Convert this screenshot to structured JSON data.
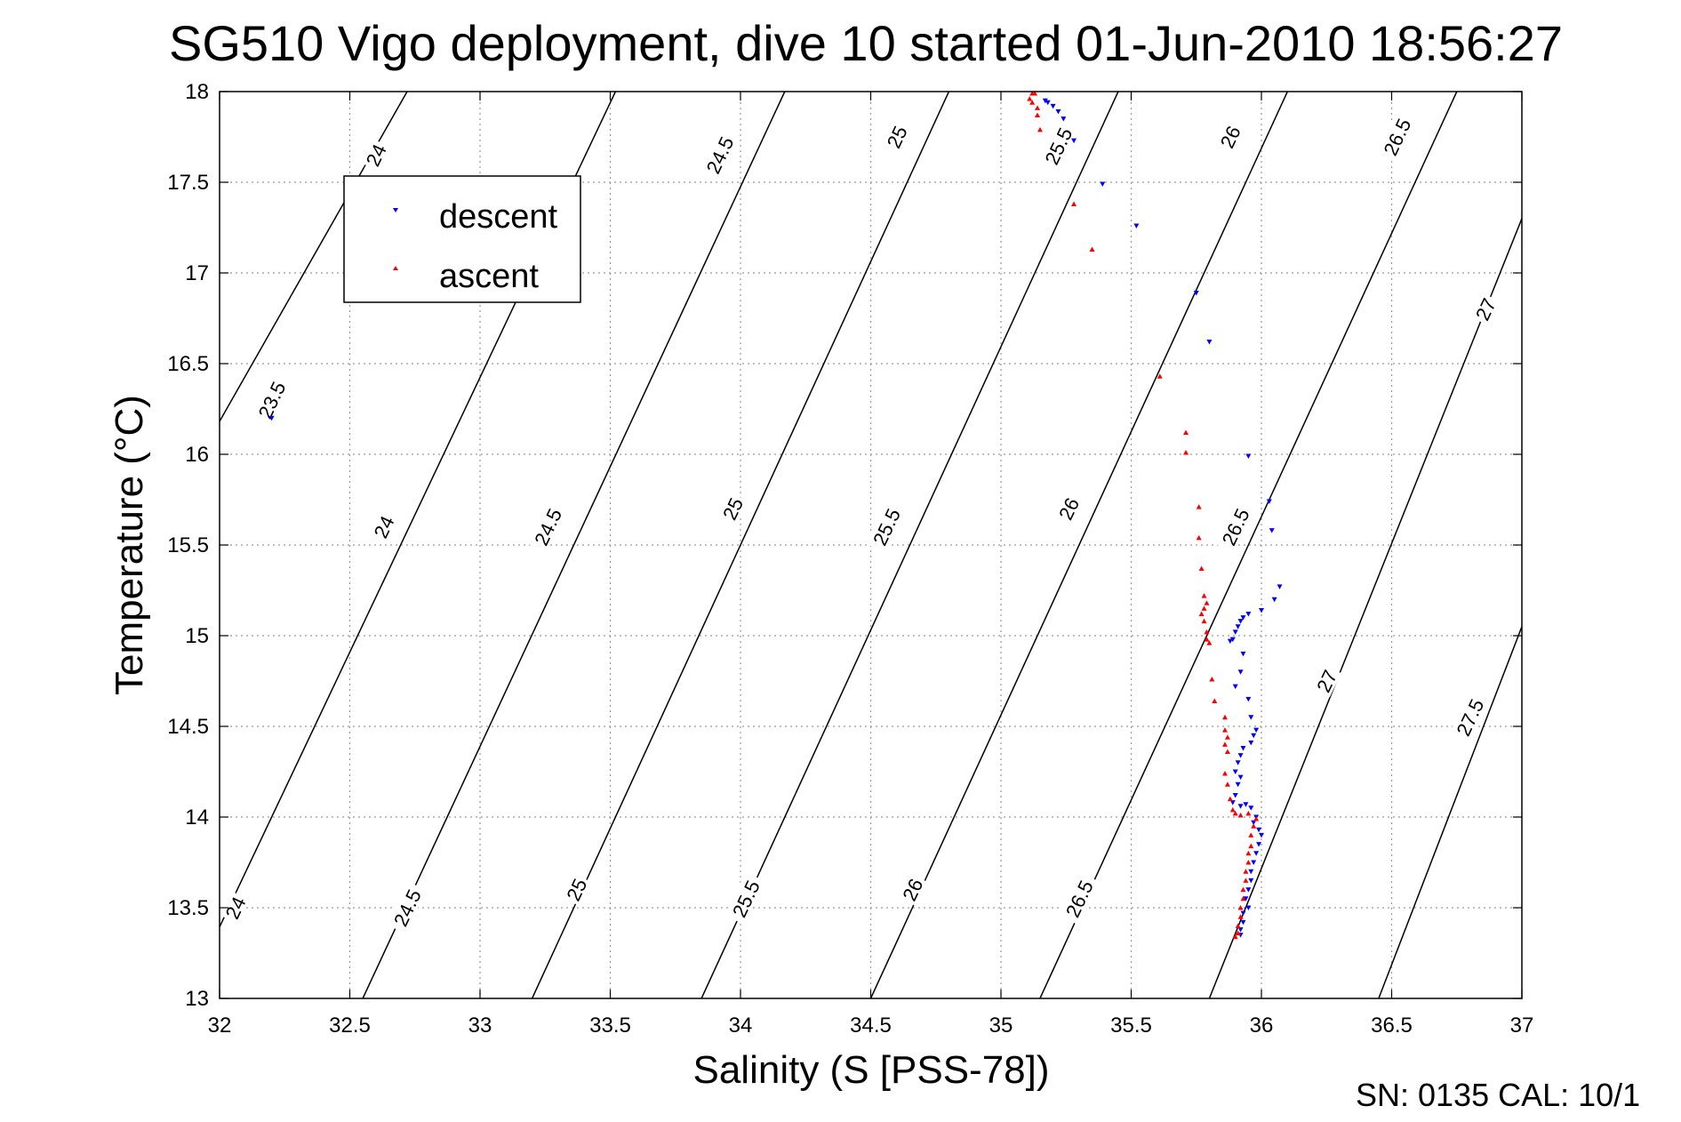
{
  "chart_data": {
    "type": "scatter",
    "title": "SG510 Vigo deployment, dive 10 started 01-Jun-2010 18:56:27",
    "xlabel": "Salinity (S [PSS-78])",
    "ylabel": "Temperature (°C)",
    "xlim": [
      32,
      37
    ],
    "ylim": [
      13,
      18
    ],
    "x_ticks": [
      "32",
      "32.5",
      "33",
      "33.5",
      "34",
      "34.5",
      "35",
      "35.5",
      "36",
      "36.5",
      "37"
    ],
    "y_ticks": [
      "13",
      "13.5",
      "14",
      "14.5",
      "15",
      "15.5",
      "16",
      "16.5",
      "17",
      "17.5",
      "18"
    ],
    "grid": true,
    "legend_position": "upper-left",
    "footer_text": "SN: 0135  CAL: 10/1",
    "density_contours": [
      {
        "label": "23.5",
        "points": [
          [
            31.92,
            15.98
          ],
          [
            32.72,
            18.0
          ]
        ]
      },
      {
        "label": "24",
        "points": [
          [
            31.87,
            13.0
          ],
          [
            33.52,
            18.0
          ]
        ]
      },
      {
        "label": "24.5",
        "points": [
          [
            32.55,
            13.0
          ],
          [
            34.17,
            18.0
          ]
        ]
      },
      {
        "label": "25",
        "points": [
          [
            33.2,
            13.0
          ],
          [
            34.8,
            18.0
          ]
        ]
      },
      {
        "label": "25.5",
        "points": [
          [
            33.85,
            13.0
          ],
          [
            35.45,
            18.0
          ]
        ]
      },
      {
        "label": "26",
        "points": [
          [
            34.5,
            13.0
          ],
          [
            36.1,
            18.0
          ]
        ]
      },
      {
        "label": "26.5",
        "points": [
          [
            35.15,
            13.0
          ],
          [
            36.75,
            18.0
          ]
        ]
      },
      {
        "label": "27",
        "points": [
          [
            35.8,
            13.0
          ],
          [
            37.0,
            17.3
          ]
        ]
      },
      {
        "label": "27.5",
        "points": [
          [
            36.45,
            13.0
          ],
          [
            37.0,
            15.05
          ]
        ]
      }
    ],
    "contour_labels": [
      {
        "text": "23.5",
        "x": 32.2,
        "y": 16.3
      },
      {
        "text": "24",
        "x": 32.6,
        "y": 17.65
      },
      {
        "text": "24",
        "x": 32.63,
        "y": 15.6
      },
      {
        "text": "24",
        "x": 32.06,
        "y": 13.5
      },
      {
        "text": "24.5",
        "x": 33.92,
        "y": 17.65
      },
      {
        "text": "24.5",
        "x": 33.26,
        "y": 15.6
      },
      {
        "text": "24.5",
        "x": 32.72,
        "y": 13.5
      },
      {
        "text": "25",
        "x": 34.6,
        "y": 17.75
      },
      {
        "text": "25",
        "x": 33.97,
        "y": 15.7
      },
      {
        "text": "25",
        "x": 33.37,
        "y": 13.6
      },
      {
        "text": "25.5",
        "x": 35.22,
        "y": 17.7
      },
      {
        "text": "25.5",
        "x": 34.56,
        "y": 15.6
      },
      {
        "text": "25.5",
        "x": 34.02,
        "y": 13.55
      },
      {
        "text": "26",
        "x": 35.88,
        "y": 17.75
      },
      {
        "text": "26",
        "x": 35.26,
        "y": 15.7
      },
      {
        "text": "26",
        "x": 34.66,
        "y": 13.6
      },
      {
        "text": "26.5",
        "x": 36.52,
        "y": 17.75
      },
      {
        "text": "26.5",
        "x": 35.9,
        "y": 15.6
      },
      {
        "text": "26.5",
        "x": 35.3,
        "y": 13.55
      },
      {
        "text": "27",
        "x": 36.86,
        "y": 16.8
      },
      {
        "text": "27",
        "x": 36.25,
        "y": 14.75
      },
      {
        "text": "27.5",
        "x": 36.8,
        "y": 14.55
      }
    ],
    "series": [
      {
        "name": "descent",
        "color": "#0000ff",
        "marker": "triangle-down",
        "points": [
          [
            35.17,
            17.95
          ],
          [
            35.18,
            17.94
          ],
          [
            35.2,
            17.92
          ],
          [
            35.22,
            17.89
          ],
          [
            35.24,
            17.85
          ],
          [
            35.28,
            17.73
          ],
          [
            35.39,
            17.49
          ],
          [
            35.52,
            17.26
          ],
          [
            35.75,
            16.89
          ],
          [
            35.8,
            16.62
          ],
          [
            32.2,
            16.2
          ],
          [
            35.95,
            15.99
          ],
          [
            36.03,
            15.74
          ],
          [
            36.04,
            15.58
          ],
          [
            36.07,
            15.27
          ],
          [
            36.05,
            15.2
          ],
          [
            36.0,
            15.14
          ],
          [
            35.95,
            15.12
          ],
          [
            35.93,
            15.1
          ],
          [
            35.92,
            15.08
          ],
          [
            35.91,
            15.05
          ],
          [
            35.9,
            15.02
          ],
          [
            35.89,
            14.98
          ],
          [
            35.88,
            14.97
          ],
          [
            35.93,
            14.9
          ],
          [
            35.92,
            14.8
          ],
          [
            35.9,
            14.72
          ],
          [
            35.95,
            14.65
          ],
          [
            35.96,
            14.55
          ],
          [
            35.98,
            14.48
          ],
          [
            35.97,
            14.45
          ],
          [
            35.96,
            14.41
          ],
          [
            35.93,
            14.38
          ],
          [
            35.92,
            14.34
          ],
          [
            35.91,
            14.3
          ],
          [
            35.9,
            14.25
          ],
          [
            35.92,
            14.22
          ],
          [
            35.91,
            14.18
          ],
          [
            35.9,
            14.12
          ],
          [
            35.89,
            14.08
          ],
          [
            35.92,
            14.06
          ],
          [
            35.94,
            14.07
          ],
          [
            35.96,
            14.05
          ],
          [
            35.98,
            14.0
          ],
          [
            35.97,
            13.97
          ],
          [
            35.99,
            13.93
          ],
          [
            36.0,
            13.9
          ],
          [
            35.99,
            13.85
          ],
          [
            35.98,
            13.8
          ],
          [
            35.97,
            13.75
          ],
          [
            35.96,
            13.7
          ],
          [
            35.96,
            13.65
          ],
          [
            35.95,
            13.6
          ],
          [
            35.94,
            13.55
          ],
          [
            35.95,
            13.5
          ],
          [
            35.93,
            13.47
          ],
          [
            35.93,
            13.42
          ],
          [
            35.92,
            13.38
          ],
          [
            35.92,
            13.35
          ]
        ]
      },
      {
        "name": "ascent",
        "color": "#ff0000",
        "marker": "triangle-up",
        "points": [
          [
            35.12,
            17.99
          ],
          [
            35.13,
            17.99
          ],
          [
            35.11,
            17.96
          ],
          [
            35.12,
            17.94
          ],
          [
            35.14,
            17.91
          ],
          [
            35.14,
            17.87
          ],
          [
            35.15,
            17.79
          ],
          [
            35.28,
            17.38
          ],
          [
            35.35,
            17.13
          ],
          [
            35.61,
            16.43
          ],
          [
            35.71,
            16.12
          ],
          [
            35.71,
            16.01
          ],
          [
            35.76,
            15.71
          ],
          [
            35.76,
            15.54
          ],
          [
            35.77,
            15.37
          ],
          [
            35.78,
            15.22
          ],
          [
            35.79,
            15.18
          ],
          [
            35.78,
            15.15
          ],
          [
            35.77,
            15.12
          ],
          [
            35.78,
            15.08
          ],
          [
            35.79,
            15.02
          ],
          [
            35.79,
            14.98
          ],
          [
            35.8,
            14.96
          ],
          [
            35.81,
            14.76
          ],
          [
            35.82,
            14.64
          ],
          [
            35.86,
            14.55
          ],
          [
            35.86,
            14.48
          ],
          [
            35.87,
            14.44
          ],
          [
            35.86,
            14.4
          ],
          [
            35.87,
            14.36
          ],
          [
            35.86,
            14.24
          ],
          [
            35.87,
            14.18
          ],
          [
            35.88,
            14.1
          ],
          [
            35.89,
            14.04
          ],
          [
            35.9,
            14.02
          ],
          [
            35.92,
            14.01
          ],
          [
            35.95,
            14.02
          ],
          [
            35.98,
            13.99
          ],
          [
            35.97,
            13.95
          ],
          [
            35.96,
            13.9
          ],
          [
            35.96,
            13.84
          ],
          [
            35.95,
            13.8
          ],
          [
            35.95,
            13.75
          ],
          [
            35.94,
            13.7
          ],
          [
            35.94,
            13.65
          ],
          [
            35.93,
            13.6
          ],
          [
            35.93,
            13.55
          ],
          [
            35.92,
            13.5
          ],
          [
            35.92,
            13.45
          ],
          [
            35.91,
            13.4
          ],
          [
            35.91,
            13.36
          ],
          [
            35.9,
            13.34
          ]
        ]
      }
    ]
  }
}
